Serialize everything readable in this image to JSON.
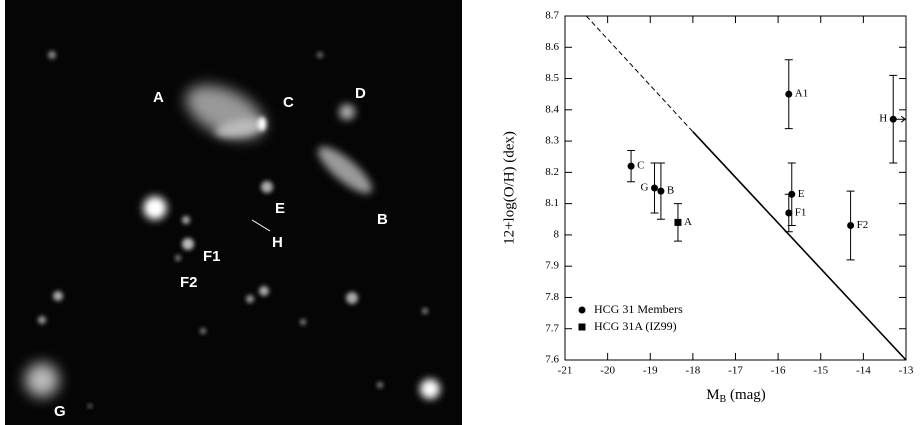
{
  "image": {
    "labels": [
      "A",
      "C",
      "D",
      "B",
      "E",
      "H",
      "F1",
      "F2",
      "G"
    ]
  },
  "chart_data": {
    "type": "scatter",
    "xlabel": [
      "M",
      "B",
      " (mag)"
    ],
    "ylabel": "12+log(O/H)  (dex)",
    "xlim": [
      -21,
      -13
    ],
    "xticks": [
      -21,
      -20,
      -19,
      -18,
      -17,
      -16,
      -15,
      -14,
      -13
    ],
    "ylim": [
      7.6,
      8.7
    ],
    "yticks": [
      7.6,
      7.7,
      7.8,
      7.9,
      8,
      8.1,
      8.2,
      8.3,
      8.4,
      8.5,
      8.6,
      8.7
    ],
    "series": [
      {
        "name": "HCG 31 Members",
        "marker": "circle",
        "color": "#000000",
        "point_labels": [
          "C",
          "G",
          "B",
          "A1",
          "E",
          "F1",
          "F2",
          "H"
        ],
        "x": [
          -19.45,
          -18.9,
          -18.75,
          -15.75,
          -15.68,
          -15.75,
          -14.3,
          -13.3
        ],
        "values": [
          8.22,
          8.15,
          8.14,
          8.45,
          8.13,
          8.07,
          8.03,
          8.37
        ],
        "errors": [
          0.05,
          0.08,
          0.09,
          0.11,
          0.1,
          0.06,
          0.11,
          0.14
        ],
        "x_lower_limit": [
          false,
          false,
          false,
          false,
          false,
          false,
          false,
          true
        ]
      },
      {
        "name": "HCG 31A (IZ99)",
        "marker": "square",
        "color": "#000000",
        "point_labels": [
          "A"
        ],
        "x": [
          -18.35
        ],
        "values": [
          8.04
        ],
        "errors": [
          0.06
        ],
        "x_lower_limit": [
          false
        ]
      }
    ],
    "lines": [
      {
        "style": "dashed",
        "x": [
          -20.5,
          -18
        ],
        "y": [
          8.7,
          8.33
        ]
      },
      {
        "style": "solid",
        "x": [
          -18,
          -13
        ],
        "y": [
          8.33,
          7.6
        ]
      }
    ]
  }
}
